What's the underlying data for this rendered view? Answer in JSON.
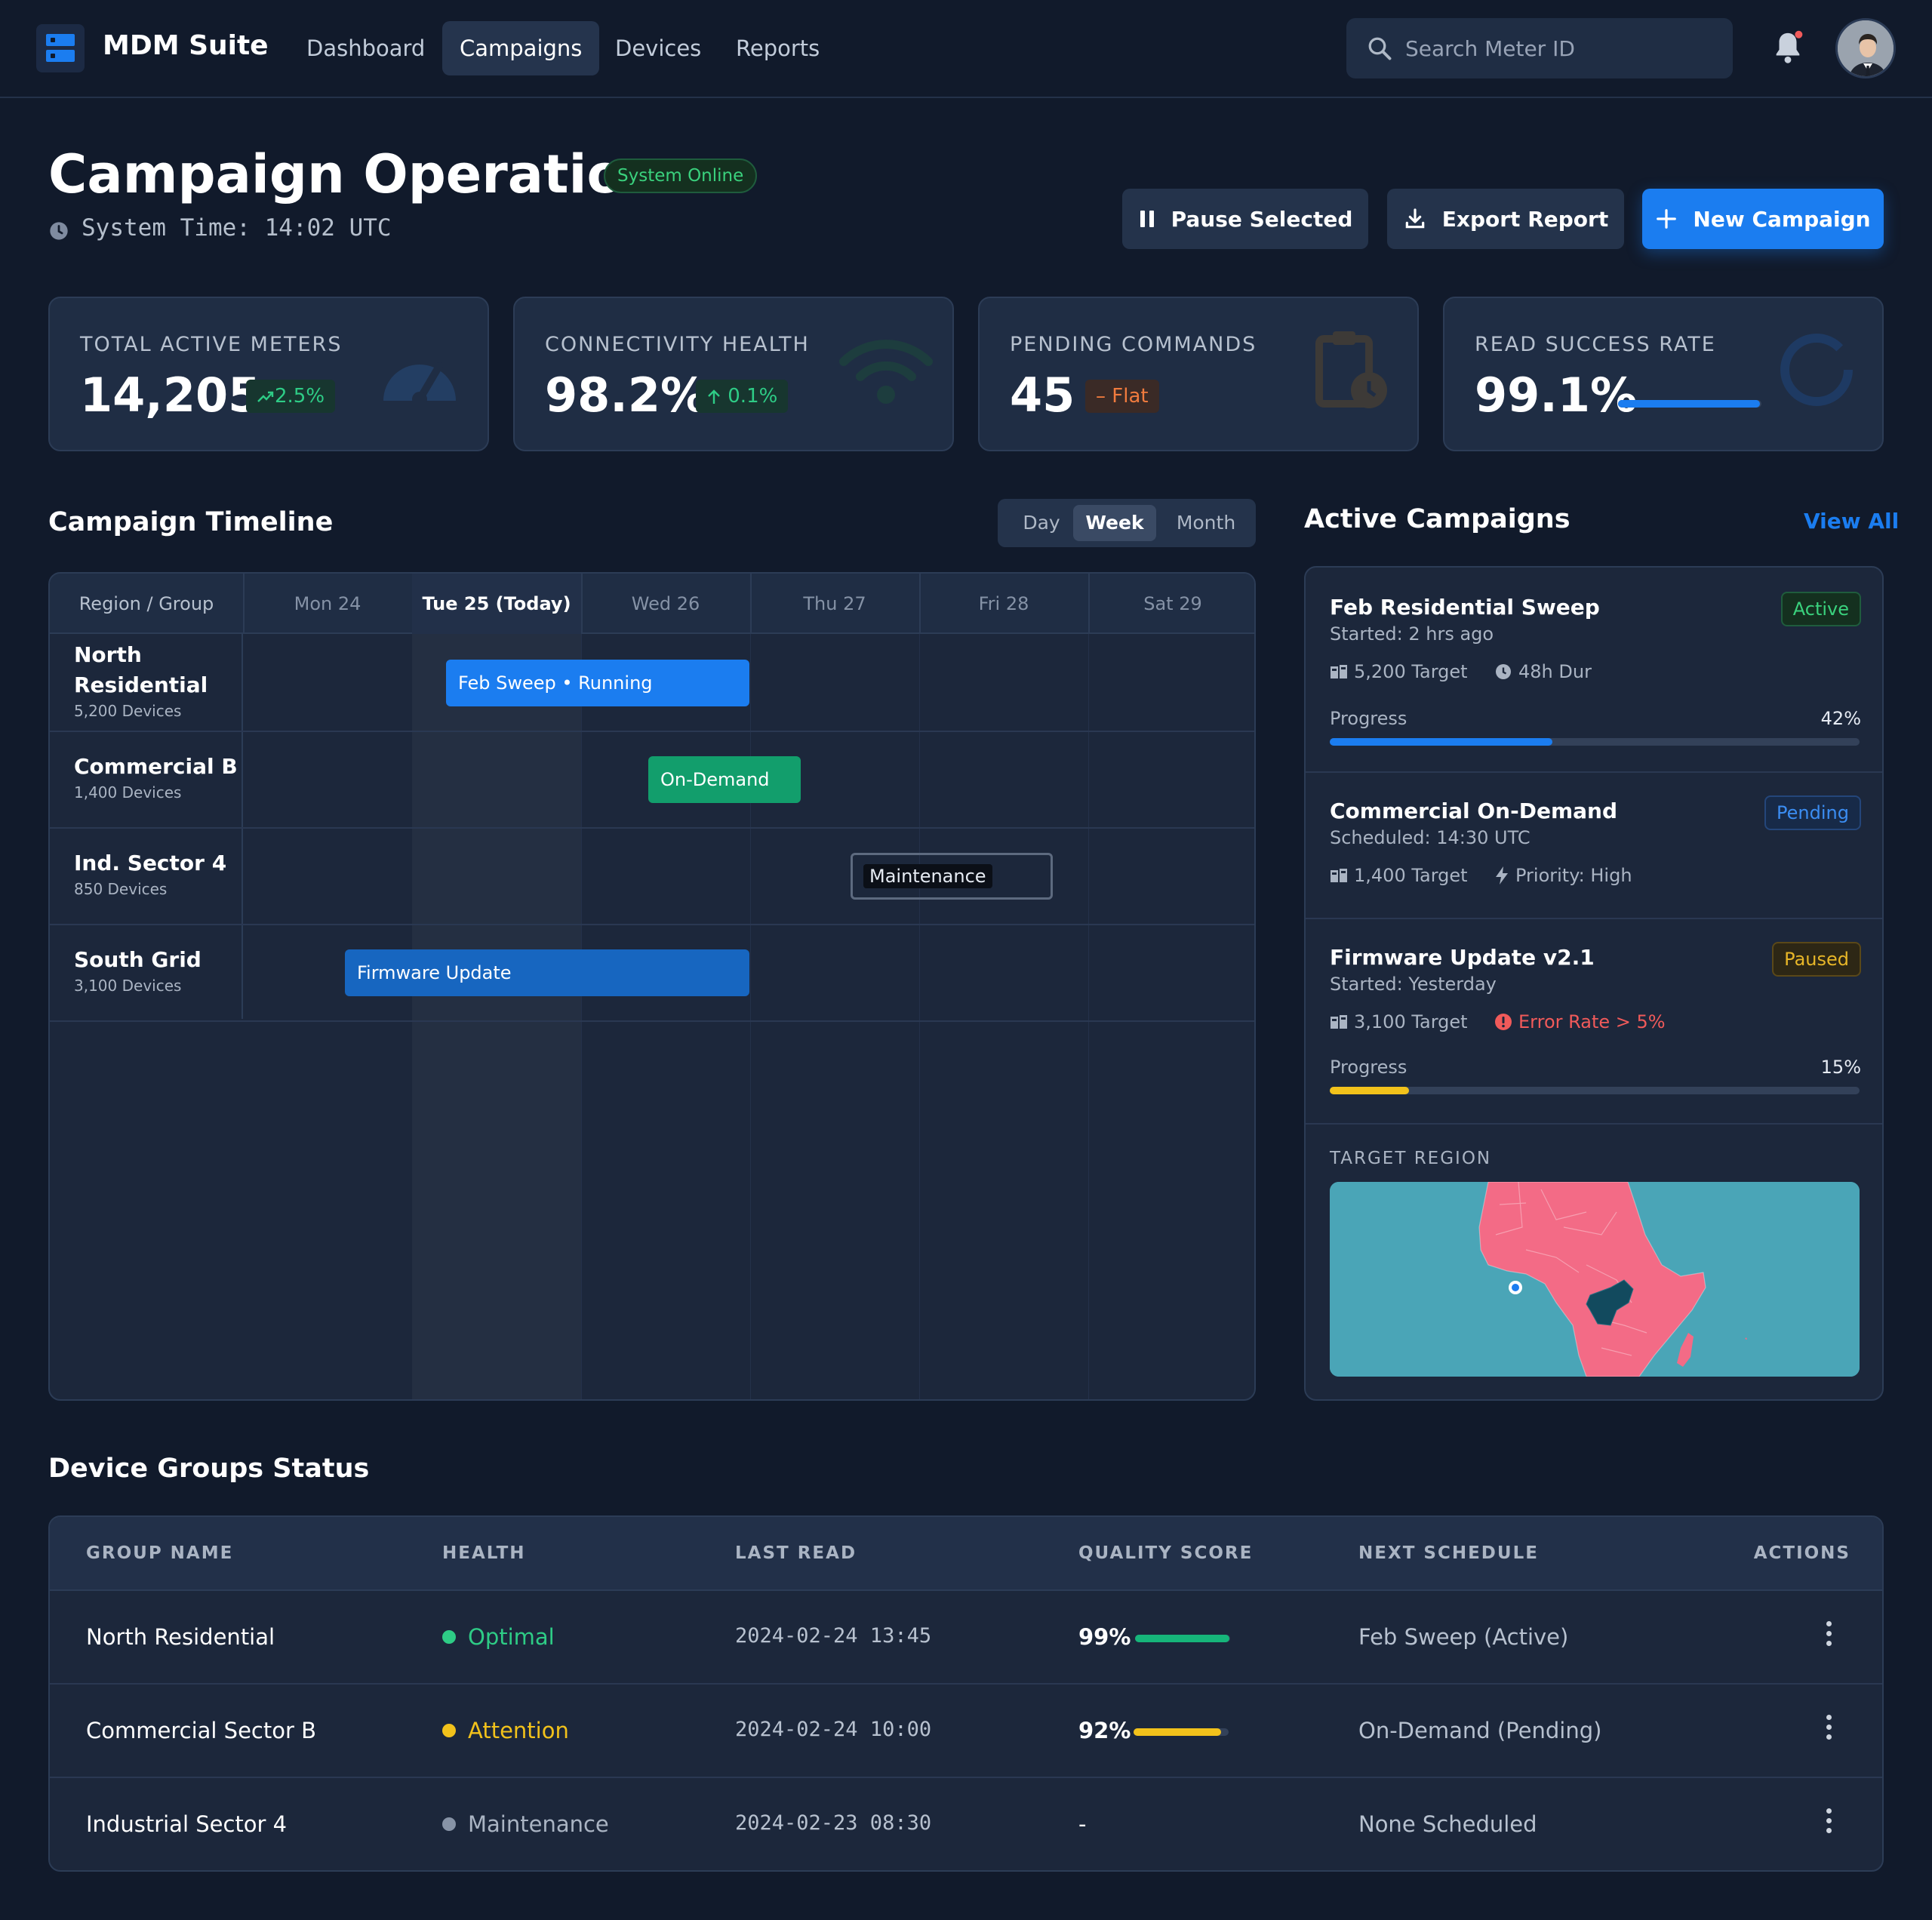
{
  "app": {
    "name": "MDM Suite"
  },
  "nav": {
    "items": [
      "Dashboard",
      "Campaigns",
      "Devices",
      "Reports"
    ],
    "active": "Campaigns"
  },
  "search": {
    "placeholder": "Search Meter ID"
  },
  "page": {
    "title": "Campaign Operations",
    "status": "System Online",
    "system_time": "System Time: 14:02 UTC"
  },
  "actions": {
    "pause": "Pause Selected",
    "export": "Export Report",
    "new": "New Campaign"
  },
  "kpis": [
    {
      "label": "TOTAL ACTIVE METERS",
      "value": "14,205",
      "change": "2.5%",
      "icon": "speedometer-icon"
    },
    {
      "label": "CONNECTIVITY HEALTH",
      "value": "98.2%",
      "change": "0.1%",
      "icon": "wifi-icon"
    },
    {
      "label": "PENDING COMMANDS",
      "value": "45",
      "change": "Flat",
      "icon": "clipboard-clock-icon"
    },
    {
      "label": "READ SUCCESS RATE",
      "value": "99.1%",
      "progress": 0.991,
      "icon": "ring-icon"
    }
  ],
  "timeline": {
    "title": "Campaign Timeline",
    "ranges": [
      "Day",
      "Week",
      "Month"
    ],
    "active_range": "Week",
    "header": "Region / Group",
    "days": [
      "Mon 24",
      "Tue 25 (Today)",
      "Wed 26",
      "Thu 27",
      "Fri 28",
      "Sat 29"
    ],
    "rows": [
      {
        "name": "North Residential",
        "devices": "5,200 Devices",
        "bar": "Feb Sweep • Running"
      },
      {
        "name": "Commercial B",
        "devices": "1,400 Devices",
        "bar": "On-Demand"
      },
      {
        "name": "Ind. Sector 4",
        "devices": "850 Devices",
        "bar": "Maintenance"
      },
      {
        "name": "South Grid",
        "devices": "3,100 Devices",
        "bar": "Firmware Update"
      }
    ]
  },
  "active_campaigns": {
    "title": "Active Campaigns",
    "view_all": "View All",
    "items": [
      {
        "name": "Feb Residential Sweep",
        "status": "Active",
        "sub": "Started: 2 hrs ago",
        "target": "5,200 Target",
        "meta": "48h Dur",
        "progress_label": "Progress",
        "progress": "42%"
      },
      {
        "name": "Commercial On-Demand",
        "status": "Pending",
        "sub": "Scheduled: 14:30 UTC",
        "target": "1,400 Target",
        "meta": "Priority: High"
      },
      {
        "name": "Firmware Update v2.1",
        "status": "Paused",
        "sub": "Started: Yesterday",
        "target": "3,100 Target",
        "meta": "Error Rate > 5%",
        "progress_label": "Progress",
        "progress": "15%"
      }
    ],
    "target_region_label": "TARGET REGION"
  },
  "device_groups": {
    "title": "Device Groups Status",
    "columns": [
      "GROUP NAME",
      "HEALTH",
      "LAST READ",
      "QUALITY SCORE",
      "NEXT SCHEDULE",
      "ACTIONS"
    ],
    "rows": [
      {
        "name": "North Residential",
        "health": "Optimal",
        "last_read": "2024-02-24 13:45",
        "quality": "99%",
        "quality_value": 0.99,
        "next": "Feb Sweep (Active)"
      },
      {
        "name": "Commercial Sector B",
        "health": "Attention",
        "last_read": "2024-02-24 10:00",
        "quality": "92%",
        "quality_value": 0.92,
        "next": "On-Demand (Pending)"
      },
      {
        "name": "Industrial Sector 4",
        "health": "Maintenance",
        "last_read": "2024-02-23 08:30",
        "quality": "-",
        "next": "None Scheduled"
      }
    ]
  },
  "colors": {
    "accent": "#1b7df0",
    "bg": "#111a2b",
    "card": "#1f2d44",
    "green": "#2ecc86",
    "yellow": "#f2c21b",
    "red": "#f05a5a",
    "orange": "#f07b3e"
  }
}
